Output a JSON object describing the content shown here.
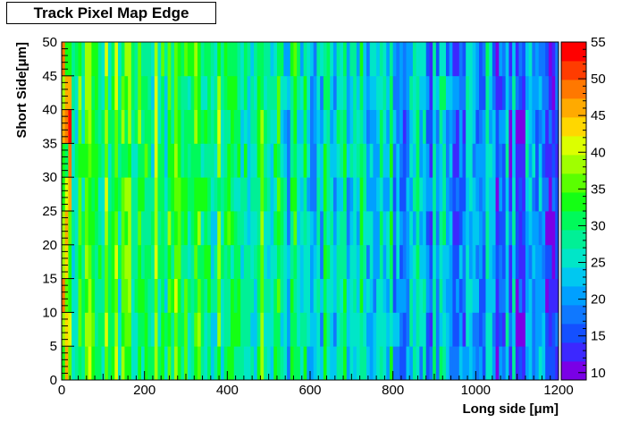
{
  "chart_data": {
    "type": "heatmap",
    "title": "Track Pixel Map Edge",
    "xlabel": "Long side [μm]",
    "ylabel": "Short Side[μm]",
    "xlim": [
      0,
      1200
    ],
    "ylim": [
      0,
      50
    ],
    "x_ticks": [
      0,
      200,
      400,
      600,
      800,
      1000,
      1200
    ],
    "y_ticks": [
      0,
      5,
      10,
      15,
      20,
      25,
      30,
      35,
      40,
      45,
      50
    ],
    "n_columns": 150,
    "n_rows": 10,
    "zlim": [
      9,
      55
    ],
    "z_ticks": [
      10,
      15,
      20,
      25,
      30,
      35,
      40,
      45,
      50,
      55
    ],
    "colorscale": [
      "#7a00e6",
      "#3c28ff",
      "#1450ff",
      "#0f78ff",
      "#00a0ff",
      "#00c8f0",
      "#00e6c8",
      "#00f096",
      "#00fa5a",
      "#14ff14",
      "#5aff00",
      "#a0ff00",
      "#dcff00",
      "#ffd700",
      "#ffaa00",
      "#ff7800",
      "#ff3c00",
      "#ff0000"
    ],
    "profile": {
      "description_free": true,
      "mean_by_x": [
        [
          0,
          33
        ],
        [
          200,
          32
        ],
        [
          400,
          31
        ],
        [
          600,
          27
        ],
        [
          800,
          24
        ],
        [
          1000,
          20
        ],
        [
          1200,
          18
        ]
      ],
      "spread": 8
    },
    "grid": false,
    "legend": "colorbar-right"
  }
}
